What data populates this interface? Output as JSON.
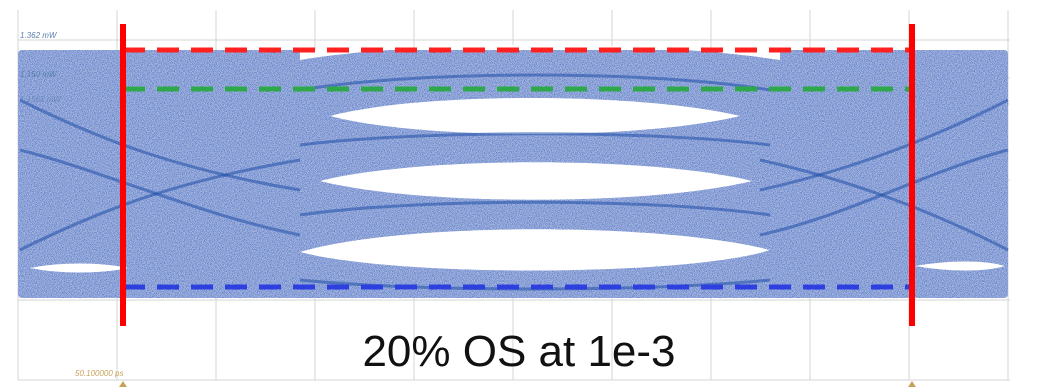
{
  "scope": {
    "level_labels": [
      "1.362 mW",
      "1.150 mW",
      "1.1561 mW"
    ],
    "time_label": "50.100000 ps",
    "eye_color": "#3a6fc8",
    "background": "#ffffff",
    "grid_color": "#d4d4d4"
  },
  "markers": {
    "limit_line_color": "#ff0000",
    "overshoot_line_color": "#ff2020",
    "level1_line_color": "#2ea84a",
    "level0_line_color": "#2e3fe0"
  },
  "caption": "20% OS at 1e-3"
}
